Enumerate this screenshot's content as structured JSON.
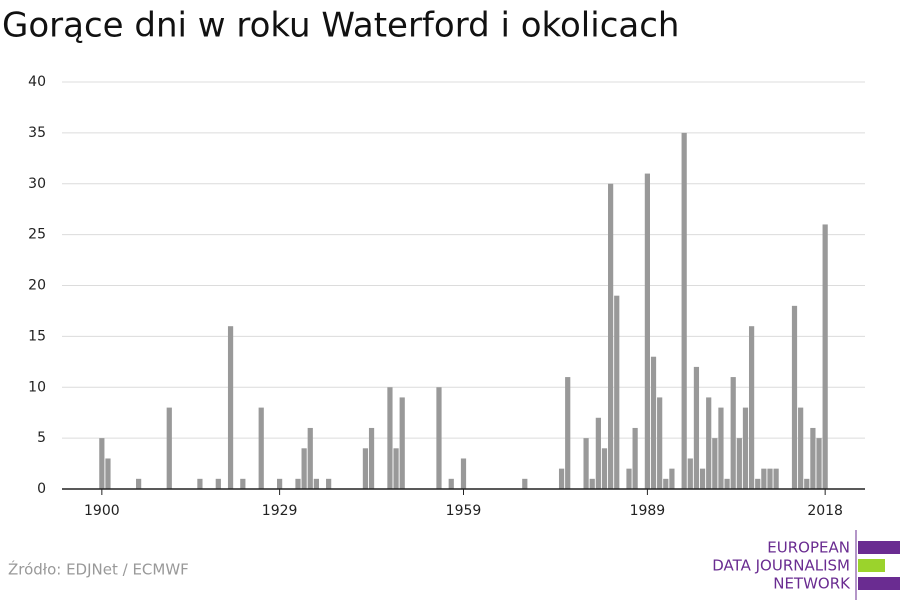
{
  "chart_data": {
    "type": "bar",
    "title": "Gorące dni w roku Waterford i okolicach",
    "x": [
      1900,
      1901,
      1906,
      1911,
      1916,
      1919,
      1921,
      1923,
      1926,
      1929,
      1932,
      1933,
      1934,
      1935,
      1937,
      1943,
      1944,
      1947,
      1948,
      1949,
      1955,
      1957,
      1959,
      1969,
      1975,
      1976,
      1979,
      1980,
      1981,
      1982,
      1983,
      1984,
      1986,
      1987,
      1989,
      1990,
      1991,
      1992,
      1993,
      1995,
      1996,
      1997,
      1998,
      1999,
      2000,
      2001,
      2002,
      2003,
      2004,
      2005,
      2006,
      2007,
      2008,
      2009,
      2010,
      2013,
      2014,
      2015,
      2016,
      2017,
      2018
    ],
    "values": [
      5,
      3,
      1,
      8,
      1,
      1,
      16,
      1,
      8,
      1,
      1,
      4,
      6,
      1,
      1,
      4,
      6,
      10,
      4,
      9,
      10,
      1,
      3,
      1,
      2,
      11,
      5,
      1,
      7,
      4,
      30,
      19,
      2,
      6,
      31,
      13,
      9,
      1,
      2,
      35,
      3,
      12,
      2,
      9,
      5,
      8,
      1,
      11,
      5,
      8,
      16,
      1,
      2,
      2,
      2,
      18,
      8,
      1,
      6,
      5,
      26
    ],
    "color": "#999999",
    "xlim": [
      1893.5,
      2024.5
    ],
    "xticks": [
      1900,
      1929,
      1959,
      1989,
      2018
    ],
    "ylim": [
      0,
      40
    ],
    "yticks": [
      0,
      5,
      10,
      15,
      20,
      25,
      30,
      35,
      40
    ],
    "grid": true,
    "source": "Źródło: EDJNet / ECMWF",
    "logo": [
      "EUROPEAN",
      "DATA JOURNALISM",
      "NETWORK"
    ]
  }
}
